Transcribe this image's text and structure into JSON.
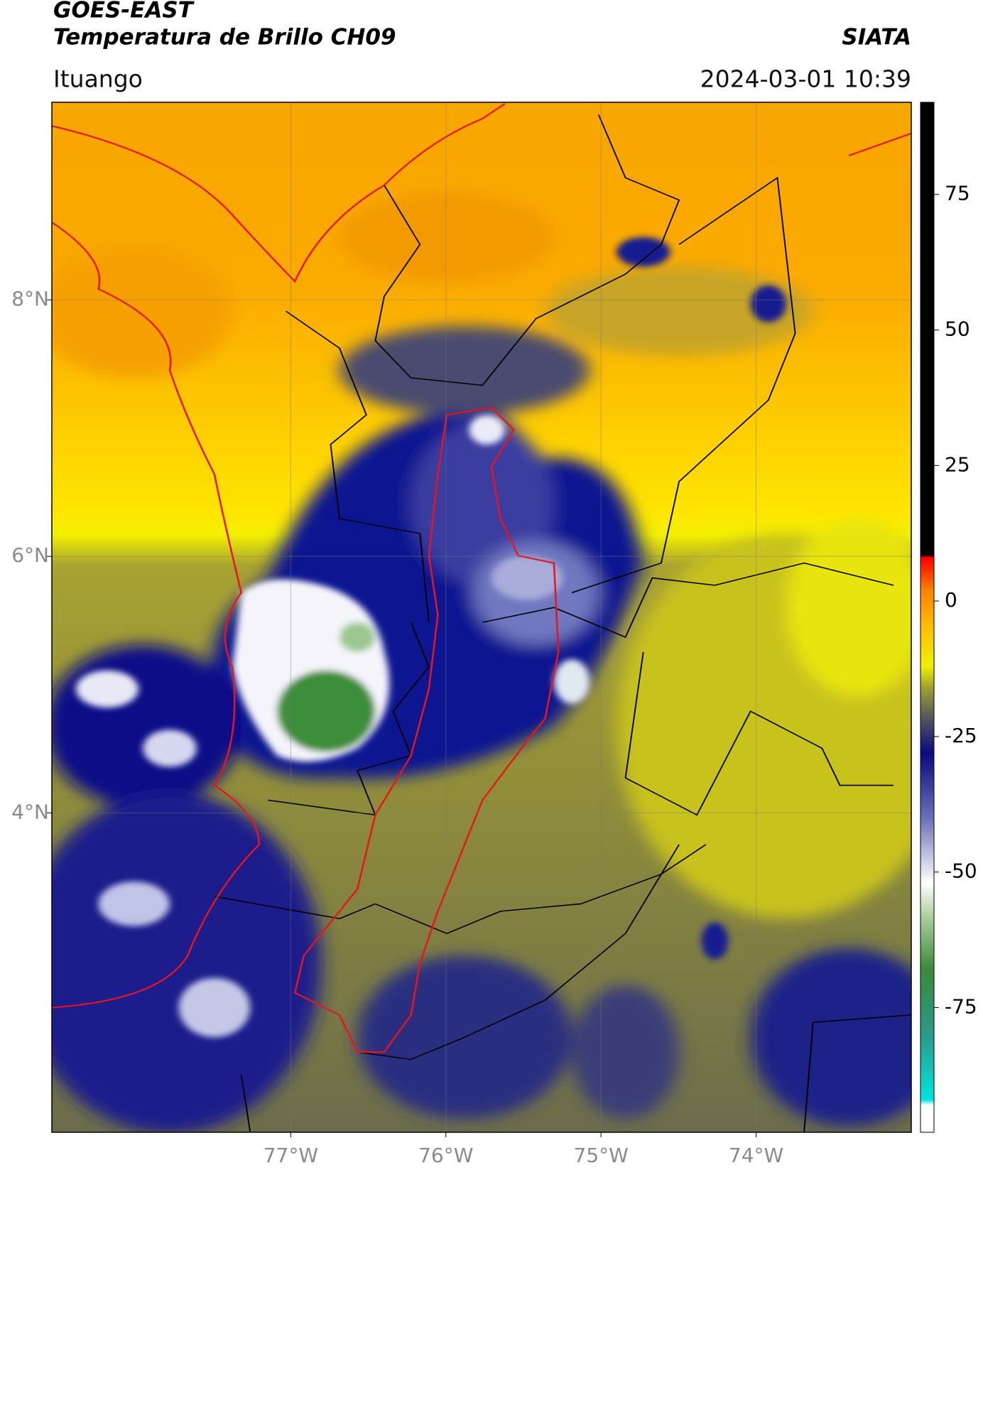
{
  "header": {
    "title": "GOES-EAST",
    "subtitle": "Temperatura de Brillo CH09",
    "brand": "SIATA",
    "location": "Ituango",
    "timestamp": "2024-03-01 10:39"
  },
  "map": {
    "xlim": [
      -78.54,
      -73.0
    ],
    "ylim": [
      1.51,
      9.54
    ],
    "xticks": [
      {
        "value": -77,
        "label": "77°W"
      },
      {
        "value": -76,
        "label": "76°W"
      },
      {
        "value": -75,
        "label": "75°W"
      },
      {
        "value": -74,
        "label": "74°W"
      }
    ],
    "yticks": [
      {
        "value": 8,
        "label": "8°N"
      },
      {
        "value": 6,
        "label": "6°N"
      },
      {
        "value": 4,
        "label": "4°N"
      }
    ],
    "grid": true,
    "colorbar": {
      "lim": [
        -98,
        92
      ],
      "ticks": [
        75,
        50,
        25,
        0,
        -25,
        -50,
        -75
      ],
      "stops": [
        {
          "value": -98,
          "color": "#ffffff"
        },
        {
          "value": -93,
          "color": "#ffffff"
        },
        {
          "value": -92,
          "color": "#00e5e0"
        },
        {
          "value": -80,
          "color": "#2a9a8a"
        },
        {
          "value": -68,
          "color": "#3a8a3a"
        },
        {
          "value": -58,
          "color": "#b0d0a0"
        },
        {
          "value": -52,
          "color": "#ffffff"
        },
        {
          "value": -40,
          "color": "#6a70b8"
        },
        {
          "value": -28,
          "color": "#0a0a80"
        },
        {
          "value": -22,
          "color": "#505060"
        },
        {
          "value": -16,
          "color": "#a0a030"
        },
        {
          "value": -12,
          "color": "#f0f000"
        },
        {
          "value": -5,
          "color": "#ffc000"
        },
        {
          "value": 2,
          "color": "#ff8000"
        },
        {
          "value": 8,
          "color": "#ff0000"
        },
        {
          "value": 8.5,
          "color": "#000000"
        },
        {
          "value": 92,
          "color": "#000000"
        }
      ]
    }
  }
}
